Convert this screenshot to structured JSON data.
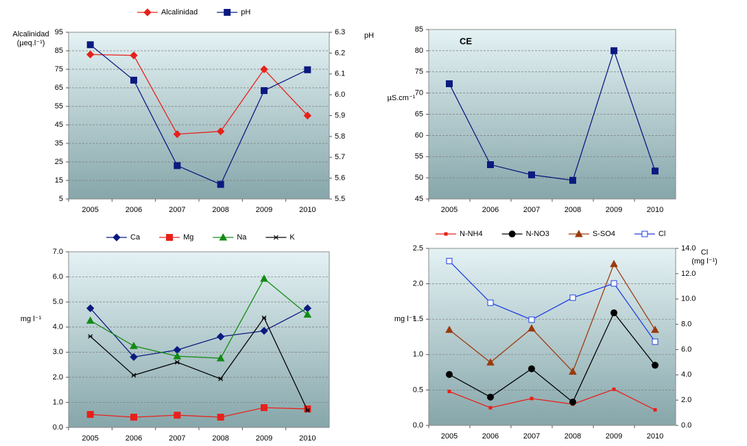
{
  "chart_data": [
    {
      "type": "line",
      "categories": [
        "2005",
        "2006",
        "2007",
        "2008",
        "2009",
        "2010"
      ],
      "ylabel": [
        "Alcalinidad",
        "(µeq.l⁻¹)"
      ],
      "y2label": [
        "pH"
      ],
      "ylim": [
        5,
        95
      ],
      "yticks": [
        5,
        15,
        25,
        35,
        45,
        55,
        65,
        75,
        85,
        95
      ],
      "y2lim": [
        5.5,
        6.3
      ],
      "y2ticks": [
        5.5,
        5.6,
        5.7,
        5.8,
        5.9,
        {
          "value": 6,
          "label": "6.0"
        },
        6.1,
        6.2,
        6.3
      ],
      "grid": true,
      "series": [
        {
          "name": "Alcalinidad",
          "color": "#e8201a",
          "marker": "diamond",
          "values": [
            83,
            82.5,
            40,
            41.5,
            75,
            50
          ]
        },
        {
          "name": "pH",
          "color": "#0b1a80",
          "marker": "square",
          "axis": "y2",
          "values": [
            6.24,
            6.07,
            5.66,
            5.57,
            6.02,
            6.12
          ]
        }
      ]
    },
    {
      "type": "line",
      "title": "CE",
      "categories": [
        "2005",
        "2006",
        "2007",
        "2008",
        "2009",
        "2010"
      ],
      "ylabel": [
        "µS.cm⁻¹"
      ],
      "ylim": [
        45,
        85
      ],
      "yticks": [
        45,
        50,
        55,
        60,
        65,
        70,
        75,
        80,
        85
      ],
      "grid": true,
      "color": "#0b1a80",
      "marker": "square",
      "values": [
        72.2,
        53.1,
        50.7,
        49.4,
        80,
        51.6
      ]
    },
    {
      "type": "line",
      "categories": [
        "2005",
        "2006",
        "2007",
        "2008",
        "2009",
        "2010"
      ],
      "ylabel": [
        "mg l⁻¹"
      ],
      "ylim": [
        0,
        7
      ],
      "yticks": [
        {
          "value": 0,
          "label": "0.0"
        },
        {
          "value": 1,
          "label": "1.0"
        },
        {
          "value": 2,
          "label": "2.0"
        },
        {
          "value": 3,
          "label": "3.0"
        },
        {
          "value": 4,
          "label": "4.0"
        },
        {
          "value": 5,
          "label": "5.0"
        },
        {
          "value": 6,
          "label": "6.0"
        },
        {
          "value": 7,
          "label": "7.0"
        }
      ],
      "grid": true,
      "series": [
        {
          "name": "Ca",
          "color": "#0b1a80",
          "marker": "diamond",
          "values": [
            4.75,
            2.81,
            3.09,
            3.62,
            3.85,
            4.75
          ]
        },
        {
          "name": "Mg",
          "color": "#e8201a",
          "marker": "square",
          "values": [
            0.52,
            0.41,
            0.49,
            0.41,
            0.79,
            0.74
          ]
        },
        {
          "name": "Na",
          "color": "#138a13",
          "marker": "triangle",
          "values": [
            4.26,
            3.25,
            2.84,
            2.76,
            5.93,
            4.5
          ]
        },
        {
          "name": "K",
          "color": "#000000",
          "marker": "x",
          "values": [
            3.63,
            2.08,
            2.6,
            1.94,
            4.37,
            0.68
          ]
        }
      ]
    },
    {
      "type": "line",
      "categories": [
        "2005",
        "2006",
        "2007",
        "2008",
        "2009",
        "2010"
      ],
      "ylabel": [
        "mg l⁻¹"
      ],
      "y2label": [
        "Cl",
        "(mg l⁻¹)"
      ],
      "ylim": [
        0,
        2.5
      ],
      "yticks": [
        {
          "value": 0,
          "label": "0.0"
        },
        0.5,
        {
          "value": 1,
          "label": "1.0"
        },
        1.5,
        {
          "value": 2,
          "label": "2.0"
        },
        2.5
      ],
      "y2lim": [
        0,
        14
      ],
      "y2ticks": [
        {
          "value": 0,
          "label": "0.0"
        },
        {
          "value": 2,
          "label": "2.0"
        },
        {
          "value": 4,
          "label": "4.0"
        },
        {
          "value": 6,
          "label": "6.0"
        },
        {
          "value": 8,
          "label": "8.0"
        },
        {
          "value": 10,
          "label": "10.0"
        },
        {
          "value": 12,
          "label": "12.0"
        },
        {
          "value": 14,
          "label": "14.0"
        }
      ],
      "grid": true,
      "series": [
        {
          "name": "N-NH4",
          "color": "#e8201a",
          "marker": "dash",
          "values": [
            0.48,
            0.25,
            0.38,
            0.3,
            0.51,
            0.22
          ]
        },
        {
          "name": "N-NO3",
          "color": "#000000",
          "marker": "circle",
          "values": [
            0.72,
            0.4,
            0.8,
            0.33,
            1.59,
            0.85
          ]
        },
        {
          "name": "S-SO4",
          "color": "#9a3b0e",
          "marker": "triangle",
          "values": [
            1.35,
            0.89,
            1.37,
            0.76,
            2.28,
            1.35
          ]
        },
        {
          "name": "Cl",
          "color": "#1f3fe0",
          "marker": "open-square",
          "axis": "y2",
          "values": [
            13.0,
            9.7,
            8.36,
            10.1,
            11.23,
            6.62
          ]
        }
      ]
    }
  ]
}
